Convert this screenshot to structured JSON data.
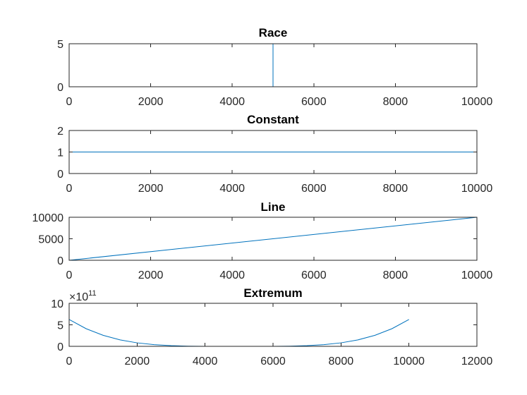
{
  "figure": {
    "background": "#ffffff",
    "line_color": "#0072BD",
    "axis_color": "#262626"
  },
  "chart_data": [
    {
      "type": "line",
      "title": "Race",
      "xlabel": "",
      "ylabel": "",
      "xlim": [
        0,
        10000
      ],
      "ylim": [
        0,
        5
      ],
      "xticks": [
        0,
        2000,
        4000,
        6000,
        8000,
        10000
      ],
      "yticks": [
        0,
        5
      ],
      "xtick_labels": [
        "0",
        "2000",
        "4000",
        "6000",
        "8000",
        "10000"
      ],
      "ytick_labels": [
        "0",
        "5"
      ],
      "grid": false,
      "series": [
        {
          "x": [
            0,
            5000,
            5000,
            10000
          ],
          "y": [
            0,
            0,
            5,
            5
          ]
        }
      ]
    },
    {
      "type": "line",
      "title": "Constant",
      "xlabel": "",
      "ylabel": "",
      "xlim": [
        0,
        10000
      ],
      "ylim": [
        0,
        2
      ],
      "xticks": [
        0,
        2000,
        4000,
        6000,
        8000,
        10000
      ],
      "yticks": [
        0,
        1,
        2
      ],
      "xtick_labels": [
        "0",
        "2000",
        "4000",
        "6000",
        "8000",
        "10000"
      ],
      "ytick_labels": [
        "0",
        "1",
        "2"
      ],
      "grid": false,
      "series": [
        {
          "x": [
            0,
            10000
          ],
          "y": [
            1,
            1
          ]
        }
      ]
    },
    {
      "type": "line",
      "title": "Line",
      "xlabel": "",
      "ylabel": "",
      "xlim": [
        0,
        10000
      ],
      "ylim": [
        0,
        10000
      ],
      "xticks": [
        0,
        2000,
        4000,
        6000,
        8000,
        10000
      ],
      "yticks": [
        0,
        5000,
        10000
      ],
      "xtick_labels": [
        "0",
        "2000",
        "4000",
        "6000",
        "8000",
        "10000"
      ],
      "ytick_labels": [
        "0",
        "5000",
        "10000"
      ],
      "grid": false,
      "series": [
        {
          "x": [
            0,
            10000
          ],
          "y": [
            0,
            10000
          ]
        }
      ]
    },
    {
      "type": "line",
      "title": "Extremum",
      "xlabel": "",
      "ylabel": "",
      "xlim": [
        0,
        12000
      ],
      "ylim": [
        0,
        10
      ],
      "xticks": [
        0,
        2000,
        4000,
        6000,
        8000,
        10000,
        12000
      ],
      "yticks": [
        0,
        5,
        10
      ],
      "xtick_labels": [
        "0",
        "2000",
        "4000",
        "6000",
        "8000",
        "10000",
        "12000"
      ],
      "ytick_labels": [
        "0",
        "5",
        "10"
      ],
      "y_exponent_base": "×10",
      "y_exponent_power": "11",
      "grid": false,
      "series": [
        {
          "x": [
            0,
            500,
            1000,
            1500,
            2000,
            2500,
            3000,
            3500,
            4000,
            4500,
            5000,
            5500,
            6000,
            6500,
            7000,
            7500,
            8000,
            8500,
            9000,
            9500,
            10000
          ],
          "y": [
            6.25,
            4.1,
            2.56,
            1.5,
            0.81,
            0.39,
            0.16,
            0.05,
            0.01,
            0.0,
            0.0,
            0.0,
            0.01,
            0.05,
            0.16,
            0.39,
            0.81,
            1.5,
            2.56,
            4.1,
            6.25
          ]
        }
      ]
    }
  ]
}
